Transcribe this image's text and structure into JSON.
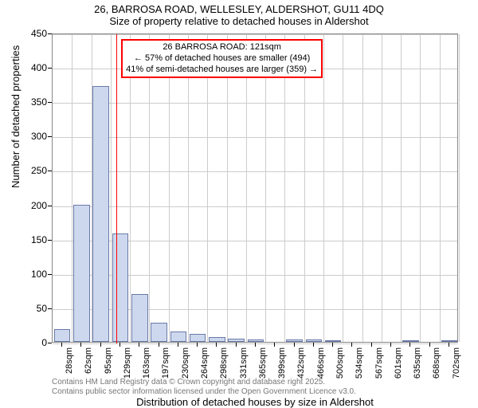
{
  "title": {
    "line1": "26, BARROSA ROAD, WELLESLEY, ALDERSHOT, GU11 4DQ",
    "line2": "Size of property relative to detached houses in Aldershot"
  },
  "y_axis": {
    "label": "Number of detached properties",
    "min": 0,
    "max": 450,
    "ticks": [
      0,
      50,
      100,
      150,
      200,
      250,
      300,
      350,
      400,
      450
    ]
  },
  "x_axis": {
    "label": "Distribution of detached houses by size in Aldershot",
    "tick_labels": [
      "28sqm",
      "62sqm",
      "95sqm",
      "129sqm",
      "163sqm",
      "197sqm",
      "230sqm",
      "264sqm",
      "298sqm",
      "331sqm",
      "365sqm",
      "399sqm",
      "432sqm",
      "466sqm",
      "500sqm",
      "534sqm",
      "567sqm",
      "601sqm",
      "635sqm",
      "668sqm",
      "702sqm"
    ]
  },
  "bars": {
    "values": [
      18,
      200,
      372,
      158,
      70,
      28,
      15,
      12,
      7,
      5,
      4,
      0,
      4,
      3,
      2,
      0,
      0,
      0,
      1,
      0,
      2
    ],
    "fill_color": "#cdd8ee",
    "stroke_color": "#6a7aa8",
    "bar_width_ratio": 0.85
  },
  "annotation": {
    "marker_x_index": 2.8,
    "line_color": "#ff0000",
    "box": {
      "line1": "26 BARROSA ROAD: 121sqm",
      "line2": "← 57% of detached houses are smaller (494)",
      "line3": "41% of semi-detached houses are larger (359) →"
    }
  },
  "footer": {
    "line1": "Contains HM Land Registry data © Crown copyright and database right 2025.",
    "line2": "Contains public sector information licensed under the Open Government Licence v3.0."
  },
  "chart_style": {
    "background_color": "#ffffff",
    "grid_color": "#cccccc",
    "axis_color": "#888888",
    "title_fontsize": 13,
    "axis_label_fontsize": 13,
    "tick_fontsize": 12,
    "footer_fontsize": 10,
    "footer_color": "#777777"
  }
}
